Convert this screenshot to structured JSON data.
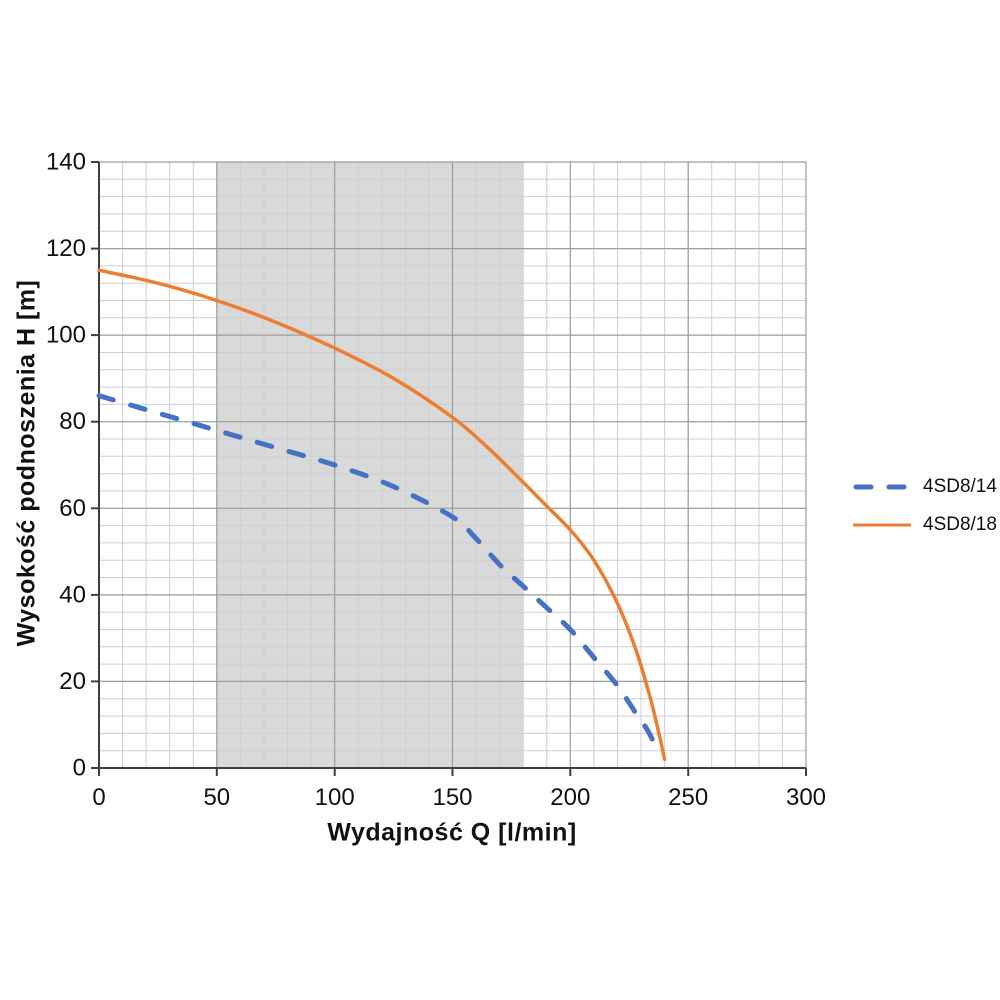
{
  "chart_data": {
    "type": "line",
    "title": "",
    "xlabel": "Wydajność Q [l/min]",
    "ylabel": "Wysokość podnoszenia H [m]",
    "xlim": [
      0,
      300
    ],
    "ylim": [
      0,
      140
    ],
    "x_major_ticks": [
      0,
      50,
      100,
      150,
      200,
      250,
      300
    ],
    "y_major_ticks": [
      0,
      20,
      40,
      60,
      80,
      100,
      120,
      140
    ],
    "x_minor_step": 10,
    "y_minor_step": 4,
    "grid": "major+minor",
    "legend_position": "right-middle",
    "shaded_band": {
      "x_from": 50,
      "x_to": 180,
      "color": "#d9d9d9"
    },
    "axis_color": "#3f3f3f",
    "major_grid_color": "#9d9d9d",
    "minor_grid_color": "#cfcfcf",
    "text_color": "#111111",
    "series": [
      {
        "name": "4SD8/14",
        "color": "#4472c4",
        "line_style": "dashed",
        "points": [
          [
            0,
            86
          ],
          [
            25,
            82
          ],
          [
            50,
            78
          ],
          [
            75,
            74
          ],
          [
            100,
            70
          ],
          [
            125,
            65
          ],
          [
            150,
            58
          ],
          [
            160,
            53
          ],
          [
            170,
            47
          ],
          [
            180,
            42
          ],
          [
            190,
            37
          ],
          [
            200,
            32
          ],
          [
            210,
            25.5
          ],
          [
            220,
            19
          ],
          [
            228,
            12.5
          ],
          [
            233,
            8.5
          ],
          [
            237,
            4
          ]
        ]
      },
      {
        "name": "4SD8/18",
        "color": "#ed7d31",
        "line_style": "solid",
        "points": [
          [
            0,
            115
          ],
          [
            25,
            112
          ],
          [
            50,
            108
          ],
          [
            75,
            103
          ],
          [
            100,
            97
          ],
          [
            125,
            90
          ],
          [
            150,
            81
          ],
          [
            165,
            74
          ],
          [
            180,
            66
          ],
          [
            190,
            60.5
          ],
          [
            200,
            55
          ],
          [
            210,
            48
          ],
          [
            220,
            38
          ],
          [
            228,
            27
          ],
          [
            234,
            16
          ],
          [
            238,
            7
          ],
          [
            240,
            2
          ]
        ]
      }
    ]
  }
}
